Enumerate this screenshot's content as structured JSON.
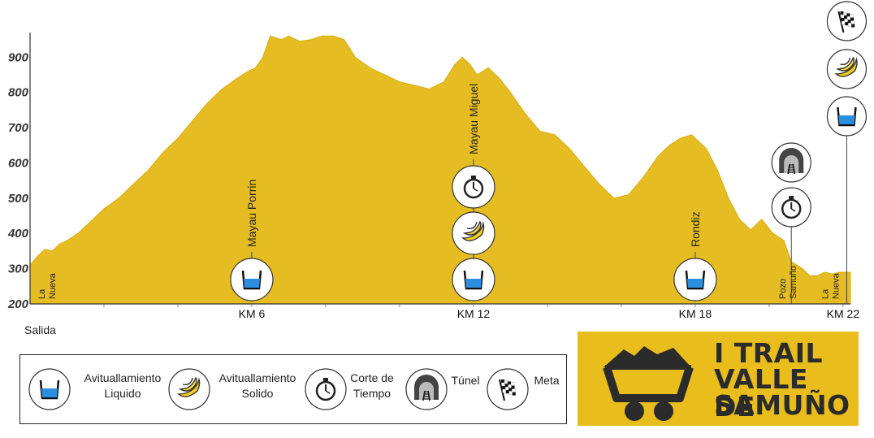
{
  "chart_data": {
    "type": "area",
    "title": "",
    "xlabel": "",
    "ylabel": "",
    "x_unit": "km",
    "xlim": [
      0,
      22.2
    ],
    "ylim": [
      200,
      970
    ],
    "yticks": [
      200,
      300,
      400,
      500,
      600,
      700,
      800,
      900
    ],
    "xticks": [
      {
        "x": 6,
        "label": "KM 6"
      },
      {
        "x": 12,
        "label": "KM 12"
      },
      {
        "x": 18,
        "label": "KM 18"
      },
      {
        "x": 22,
        "label": "KM 22"
      }
    ],
    "fill_color": "#e5bd22",
    "series": [
      {
        "x": [
          0,
          0.2,
          0.4,
          0.6,
          0.8,
          1.0,
          1.3,
          1.6,
          2.0,
          2.4,
          2.8,
          3.2,
          3.6,
          4.0,
          4.4,
          4.8,
          5.2,
          5.6,
          5.9,
          6.1,
          6.3,
          6.5,
          6.8,
          7.0,
          7.3,
          7.6,
          7.9,
          8.2,
          8.5,
          8.8,
          9.2,
          9.6,
          10.0,
          10.4,
          10.8,
          11.2,
          11.5,
          11.7,
          11.9,
          12.1,
          12.4,
          12.7,
          13.0,
          13.4,
          13.8,
          14.2,
          14.6,
          15.0,
          15.4,
          15.8,
          16.2,
          16.6,
          17.0,
          17.3,
          17.6,
          17.9,
          18.1,
          18.3,
          18.6,
          18.9,
          19.2,
          19.5,
          19.8,
          20.1,
          20.4,
          20.6,
          20.9,
          21.1,
          21.3,
          21.5,
          21.7,
          21.9,
          22.2
        ],
        "y": [
          310,
          335,
          355,
          350,
          370,
          380,
          400,
          430,
          470,
          500,
          540,
          580,
          630,
          670,
          720,
          770,
          810,
          840,
          860,
          870,
          900,
          960,
          950,
          960,
          945,
          950,
          960,
          960,
          950,
          900,
          870,
          850,
          830,
          820,
          810,
          830,
          880,
          900,
          880,
          850,
          870,
          840,
          800,
          740,
          690,
          680,
          640,
          590,
          540,
          500,
          510,
          560,
          620,
          650,
          670,
          680,
          660,
          640,
          580,
          500,
          440,
          410,
          440,
          400,
          380,
          320,
          300,
          280,
          280,
          290,
          285,
          290,
          290
        ]
      }
    ],
    "stations": [
      {
        "x": 6,
        "name": "Mayau Porrin",
        "icons": [
          "water-icon"
        ]
      },
      {
        "x": 12,
        "name": "Mayau Miguel",
        "icons": [
          "water-icon",
          "banana-icon",
          "stopwatch-icon"
        ]
      },
      {
        "x": 18,
        "name": "Rondiz",
        "icons": [
          "water-icon"
        ]
      },
      {
        "x": 20.6,
        "name": "",
        "icons": [
          "stopwatch-icon",
          "tunnel-icon"
        ]
      },
      {
        "x": 22.1,
        "name": "",
        "icons": [
          "water-icon",
          "banana-icon",
          "finish-flag-icon"
        ]
      }
    ],
    "places": [
      {
        "x": 0.15,
        "lines": [
          "La",
          "Nueva"
        ]
      },
      {
        "x": 20.2,
        "lines": [
          "Pozo",
          "Samuño"
        ]
      },
      {
        "x": 21.35,
        "lines": [
          "La",
          "Nueva"
        ]
      }
    ]
  },
  "start_label": "Salida",
  "legend": [
    {
      "icon": "water-icon",
      "lines": [
        "Avituallamiento",
        "Liquido"
      ]
    },
    {
      "icon": "banana-icon",
      "lines": [
        "Avituallamiento",
        "Solido"
      ]
    },
    {
      "icon": "stopwatch-icon",
      "lines": [
        "Corte de",
        "Tiempo"
      ]
    },
    {
      "icon": "tunnel-icon",
      "lines": [
        "Túnel"
      ]
    },
    {
      "icon": "finish-flag-icon",
      "lines": [
        "Meta"
      ]
    }
  ],
  "logo": {
    "lines": [
      "I TRAIL",
      "VALLE DE",
      "SAMUÑO"
    ],
    "background": "#e8bd1c",
    "text_color": "#2b2b2b"
  }
}
